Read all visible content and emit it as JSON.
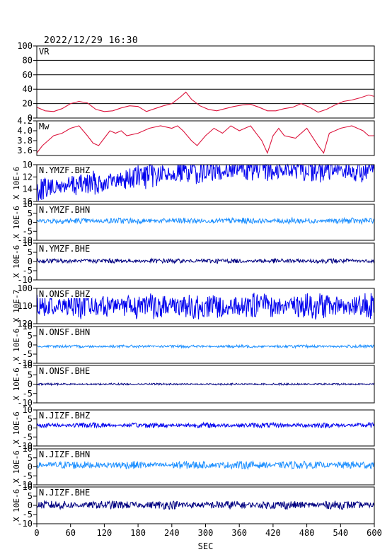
{
  "header": {
    "datetime": "2022/12/29  16:30"
  },
  "chart_data": {
    "type": "line",
    "xlabel": "SEC",
    "x_range": [
      0,
      600
    ],
    "x_ticks": [
      0,
      60,
      120,
      180,
      240,
      300,
      360,
      420,
      480,
      540,
      600
    ],
    "x_tick_labels": [
      "0",
      "60",
      "120",
      "180",
      "240",
      "300",
      "360",
      "420",
      "480",
      "540",
      "600"
    ],
    "colors": {
      "vr_mw": "#dc143c",
      "bhz": "#0000ee",
      "bhn": "#1e90ff",
      "bhe": "#000080",
      "frame": "#000000"
    },
    "panels": [
      {
        "id": "vr",
        "label": "VR",
        "ylim": [
          0,
          100
        ],
        "y_inverted": false,
        "grid": true,
        "y_ticks": [
          0,
          20,
          40,
          60,
          80,
          100
        ],
        "y_tick_labels": [
          "0",
          "20",
          "40",
          "60",
          "80",
          "100"
        ],
        "color": "#dc143c",
        "x": [
          0,
          15,
          30,
          45,
          60,
          75,
          90,
          105,
          120,
          135,
          150,
          165,
          180,
          195,
          210,
          225,
          240,
          255,
          265,
          275,
          290,
          305,
          320,
          335,
          350,
          365,
          380,
          395,
          410,
          425,
          440,
          455,
          470,
          485,
          500,
          515,
          530,
          545,
          560,
          575,
          590,
          600
        ],
        "y": [
          15,
          10,
          9,
          13,
          20,
          23,
          21,
          12,
          9,
          10,
          14,
          17,
          16,
          9,
          13,
          17,
          20,
          29,
          36,
          26,
          17,
          12,
          10,
          13,
          16,
          18,
          19,
          15,
          10,
          10,
          13,
          15,
          20,
          15,
          8,
          12,
          18,
          23,
          25,
          28,
          32,
          30
        ]
      },
      {
        "id": "mw",
        "label": "Mw",
        "ylim": [
          3.5,
          4.2
        ],
        "y_inverted": false,
        "grid": false,
        "y_ticks": [
          3.6,
          3.8,
          4.0,
          4.2
        ],
        "y_tick_labels": [
          "3.6",
          "3.8",
          "4.0",
          "4.2"
        ],
        "color": "#dc143c",
        "x": [
          0,
          10,
          20,
          30,
          45,
          60,
          75,
          90,
          100,
          110,
          120,
          130,
          140,
          150,
          160,
          180,
          200,
          220,
          240,
          250,
          260,
          275,
          285,
          300,
          315,
          330,
          345,
          360,
          380,
          400,
          410,
          420,
          430,
          440,
          460,
          480,
          500,
          510,
          520,
          540,
          560,
          580,
          590,
          600
        ],
        "y": [
          3.55,
          3.7,
          3.8,
          3.9,
          3.95,
          4.05,
          4.1,
          3.9,
          3.75,
          3.7,
          3.85,
          4.0,
          3.95,
          4.0,
          3.9,
          3.95,
          4.05,
          4.1,
          4.05,
          4.1,
          4.0,
          3.8,
          3.7,
          3.9,
          4.05,
          3.95,
          4.1,
          4.0,
          4.1,
          3.8,
          3.55,
          3.9,
          4.05,
          3.9,
          3.85,
          4.05,
          3.7,
          3.55,
          3.95,
          4.05,
          4.1,
          4.0,
          3.9,
          3.9
        ]
      },
      {
        "id": "ymzf_bhz",
        "label": "N.YMZF.BHZ",
        "ylim": [
          10,
          16
        ],
        "y_inverted": true,
        "grid": false,
        "y_ticks": [
          10,
          12,
          14,
          16
        ],
        "y_tick_labels": [
          "10",
          "12",
          "14",
          "16"
        ],
        "unit_label": "X 10E-6",
        "color": "#0000ee",
        "trend_x": [
          0,
          120,
          240,
          360,
          480,
          600
        ],
        "trend_y": [
          14,
          12.8,
          11.4,
          10.7,
          10.8,
          11.3
        ],
        "amplitude": 1.6
      },
      {
        "id": "ymzf_bhn",
        "label": "N.YMZF.BHN",
        "ylim": [
          -10,
          10
        ],
        "y_inverted": false,
        "grid": false,
        "y_ticks": [
          -10,
          -5,
          0,
          5,
          10
        ],
        "y_tick_labels": [
          "-10",
          "-5",
          "0",
          "5",
          "10"
        ],
        "unit_label": "X 10E-6",
        "color": "#1e90ff",
        "trend_x": [
          0,
          600
        ],
        "trend_y": [
          0.8,
          0.8
        ],
        "amplitude": 1.3
      },
      {
        "id": "ymzf_bhe",
        "label": "N.YMZF.BHE",
        "ylim": [
          -10,
          10
        ],
        "y_inverted": false,
        "grid": false,
        "y_ticks": [
          -10,
          -5,
          0,
          5,
          10
        ],
        "y_tick_labels": [
          "-10",
          "-5",
          "0",
          "5",
          "10"
        ],
        "unit_label": "X 10E-6",
        "color": "#000080",
        "trend_x": [
          0,
          600
        ],
        "trend_y": [
          0.3,
          0.3
        ],
        "amplitude": 1.0
      },
      {
        "id": "onsf_bhz",
        "label": "N.ONSF.BHZ",
        "ylim": [
          100,
          120
        ],
        "y_inverted": true,
        "grid": false,
        "y_ticks": [
          100,
          110,
          120
        ],
        "y_tick_labels": [
          "100",
          "110",
          "120"
        ],
        "unit_label": "X 10E-7",
        "color": "#0000ee",
        "trend_x": [
          0,
          600
        ],
        "trend_y": [
          110,
          110
        ],
        "amplitude": 6
      },
      {
        "id": "onsf_bhn",
        "label": "N.ONSF.BHN",
        "ylim": [
          -10,
          10
        ],
        "y_inverted": false,
        "grid": false,
        "y_ticks": [
          -10,
          -5,
          0,
          5,
          10
        ],
        "y_tick_labels": [
          "-10",
          "-5",
          "0",
          "5",
          "10"
        ],
        "unit_label": "X 10E-6",
        "color": "#1e90ff",
        "trend_x": [
          0,
          600
        ],
        "trend_y": [
          -0.8,
          -0.8
        ],
        "amplitude": 0.6
      },
      {
        "id": "onsf_bhe",
        "label": "N.ONSF.BHE",
        "ylim": [
          -10,
          10
        ],
        "y_inverted": false,
        "grid": false,
        "y_ticks": [
          -10,
          -5,
          0,
          5,
          10
        ],
        "y_tick_labels": [
          "-10",
          "-5",
          "0",
          "5",
          "10"
        ],
        "unit_label": "X 10E-6",
        "color": "#000080",
        "trend_x": [
          0,
          600
        ],
        "trend_y": [
          0,
          0
        ],
        "amplitude": 0.4
      },
      {
        "id": "jizf_bhz",
        "label": "N.JIZF.BHZ",
        "ylim": [
          -10,
          10
        ],
        "y_inverted": false,
        "grid": false,
        "y_ticks": [
          -10,
          -5,
          0,
          5,
          10
        ],
        "y_tick_labels": [
          "-10",
          "-5",
          "0",
          "5",
          "10"
        ],
        "unit_label": "X 10E-6",
        "color": "#0000ee",
        "trend_x": [
          0,
          600
        ],
        "trend_y": [
          1.5,
          1.5
        ],
        "amplitude": 1.1
      },
      {
        "id": "jizf_bhn",
        "label": "N.JIZF.BHN",
        "ylim": [
          -10,
          10
        ],
        "y_inverted": false,
        "grid": false,
        "y_ticks": [
          -10,
          -5,
          0,
          5,
          10
        ],
        "y_tick_labels": [
          "-10",
          "-5",
          "0",
          "5",
          "10"
        ],
        "unit_label": "X 10E-6",
        "color": "#1e90ff",
        "trend_x": [
          0,
          600
        ],
        "trend_y": [
          1.0,
          1.0
        ],
        "amplitude": 1.7
      },
      {
        "id": "jizf_bhe",
        "label": "N.JIZF.BHE",
        "ylim": [
          -10,
          10
        ],
        "y_inverted": false,
        "grid": false,
        "y_ticks": [
          -10,
          -5,
          0,
          5,
          10
        ],
        "y_tick_labels": [
          "-10",
          "-5",
          "0",
          "5",
          "10"
        ],
        "unit_label": "X 10E-6",
        "color": "#000080",
        "trend_x": [
          0,
          600
        ],
        "trend_y": [
          0.2,
          0.2
        ],
        "amplitude": 1.8
      }
    ]
  }
}
